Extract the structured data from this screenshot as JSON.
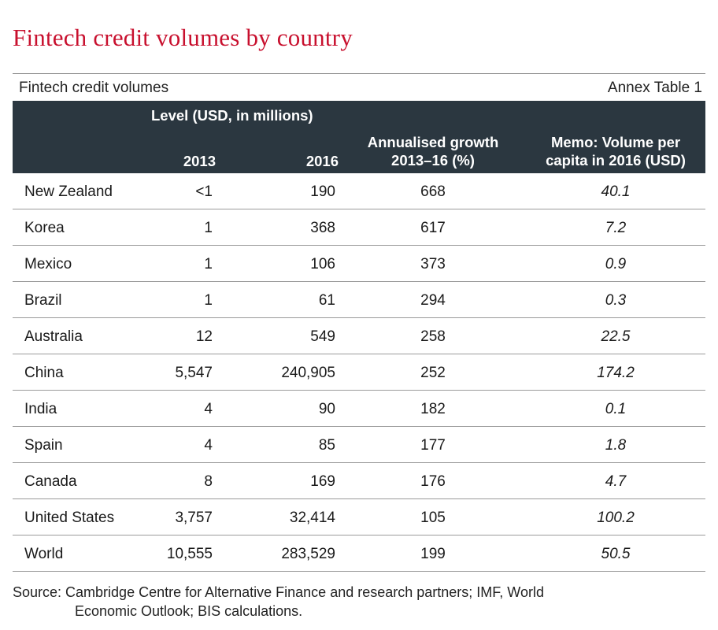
{
  "title": "Fintech credit volumes by country",
  "caption": {
    "left": "Fintech credit volumes",
    "right": "Annex Table 1"
  },
  "header": {
    "level": "Level (USD, in millions)",
    "col_2013": "2013",
    "col_2016": "2016",
    "growth_line1": "Annualised growth",
    "growth_line2": "2013–16 (%)",
    "memo_line1": "Memo: Volume per",
    "memo_line2": "capita in 2016 (USD)"
  },
  "rows": [
    {
      "country": "New Zealand",
      "v2013": "<1",
      "v2016": "190",
      "growth": "668",
      "memo": "40.1"
    },
    {
      "country": "Korea",
      "v2013": "1",
      "v2016": "368",
      "growth": "617",
      "memo": "7.2"
    },
    {
      "country": "Mexico",
      "v2013": "1",
      "v2016": "106",
      "growth": "373",
      "memo": "0.9"
    },
    {
      "country": "Brazil",
      "v2013": "1",
      "v2016": "61",
      "growth": "294",
      "memo": "0.3"
    },
    {
      "country": "Australia",
      "v2013": "12",
      "v2016": "549",
      "growth": "258",
      "memo": "22.5"
    },
    {
      "country": "China",
      "v2013": "5,547",
      "v2016": "240,905",
      "growth": "252",
      "memo": "174.2"
    },
    {
      "country": "India",
      "v2013": "4",
      "v2016": "90",
      "growth": "182",
      "memo": "0.1"
    },
    {
      "country": "Spain",
      "v2013": "4",
      "v2016": "85",
      "growth": "177",
      "memo": "1.8"
    },
    {
      "country": "Canada",
      "v2013": "8",
      "v2016": "169",
      "growth": "176",
      "memo": "4.7"
    },
    {
      "country": "United States",
      "v2013": "3,757",
      "v2016": "32,414",
      "growth": "105",
      "memo": "100.2"
    },
    {
      "country": "World",
      "v2013": "10,555",
      "v2016": "283,529",
      "growth": "199",
      "memo": "50.5"
    }
  ],
  "source": {
    "line1": "Source: Cambridge Centre for Alternative Finance and research partners; IMF, World",
    "line2": "Economic Outlook; BIS calculations."
  }
}
